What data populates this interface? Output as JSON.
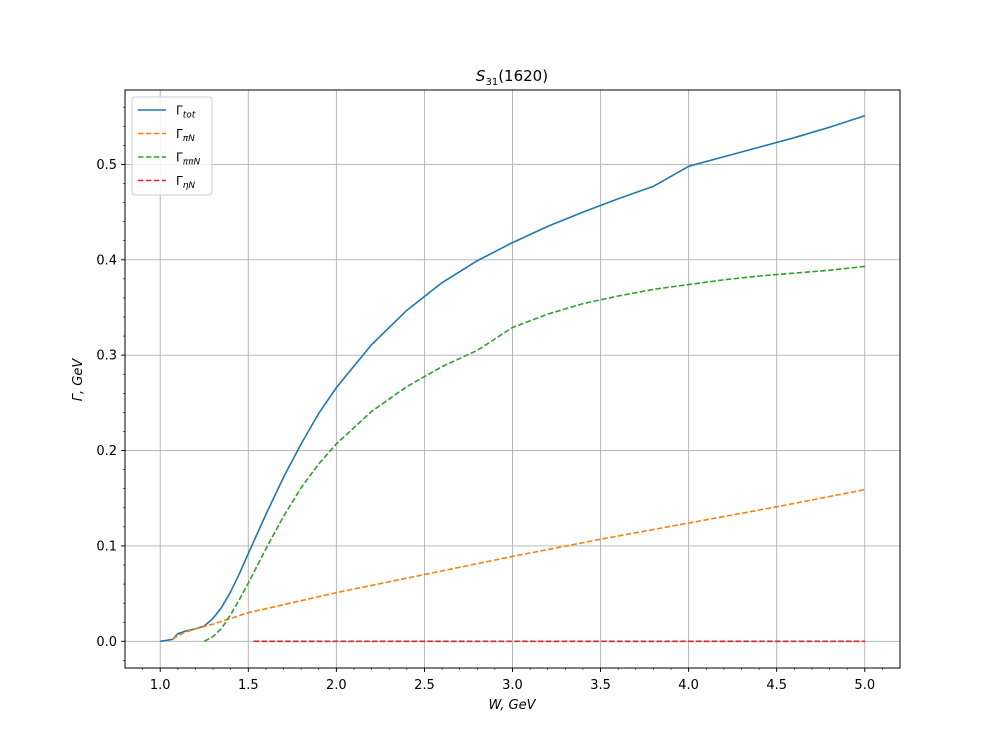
{
  "chart_data": {
    "type": "line",
    "title": {
      "main": "S",
      "sub": "31",
      "rest": "(1620)"
    },
    "xlabel": "W, GeV",
    "ylabel": "Γ,  GeV",
    "xlim": [
      0.8,
      5.2
    ],
    "ylim": [
      -0.028,
      0.578
    ],
    "xticks": [
      1.0,
      1.5,
      2.0,
      2.5,
      3.0,
      3.5,
      4.0,
      4.5,
      5.0
    ],
    "xtick_labels": [
      "1.0",
      "1.5",
      "2.0",
      "2.5",
      "3.0",
      "3.5",
      "4.0",
      "4.5",
      "5.0"
    ],
    "yticks": [
      0.0,
      0.1,
      0.2,
      0.3,
      0.4,
      0.5
    ],
    "ytick_labels": [
      "0.0",
      "0.1",
      "0.2",
      "0.3",
      "0.4",
      "0.5"
    ],
    "grid": true,
    "legend_position": "top-left",
    "series": [
      {
        "name": "Γ_tot",
        "label_main": "Γ",
        "label_sub": "tot",
        "color": "#1f77b4",
        "style": "solid",
        "x": [
          1.0,
          1.07,
          1.1,
          1.15,
          1.2,
          1.25,
          1.3,
          1.35,
          1.4,
          1.45,
          1.5,
          1.6,
          1.7,
          1.8,
          1.9,
          2.0,
          2.2,
          2.4,
          2.6,
          2.8,
          3.0,
          3.2,
          3.4,
          3.6,
          3.8,
          4.0,
          4.2,
          4.4,
          4.6,
          4.8,
          5.0
        ],
        "y": [
          0.0,
          0.002,
          0.008,
          0.011,
          0.013,
          0.016,
          0.024,
          0.036,
          0.052,
          0.071,
          0.092,
          0.133,
          0.172,
          0.207,
          0.239,
          0.266,
          0.311,
          0.347,
          0.376,
          0.399,
          0.418,
          0.435,
          0.45,
          0.464,
          0.477,
          0.498,
          0.508,
          0.518,
          0.528,
          0.539,
          0.551
        ]
      },
      {
        "name": "Γ_πN",
        "label_main": "Γ",
        "label_sub": "πN",
        "color": "#ff7f0e",
        "style": "dashed",
        "x": [
          1.07,
          1.1,
          1.15,
          1.2,
          1.3,
          1.5,
          2.0,
          2.5,
          3.0,
          3.5,
          4.0,
          4.5,
          5.0
        ],
        "y": [
          0.002,
          0.006,
          0.01,
          0.013,
          0.018,
          0.03,
          0.051,
          0.07,
          0.089,
          0.107,
          0.124,
          0.141,
          0.159
        ]
      },
      {
        "name": "Γ_ππN",
        "label_main": "Γ",
        "label_sub": "ππN",
        "color": "#2ca02c",
        "style": "dashed",
        "x": [
          1.25,
          1.3,
          1.35,
          1.4,
          1.45,
          1.5,
          1.6,
          1.7,
          1.8,
          1.9,
          2.0,
          2.2,
          2.4,
          2.6,
          2.8,
          3.0,
          3.2,
          3.4,
          3.6,
          3.8,
          4.0,
          4.2,
          4.4,
          4.6,
          4.8,
          5.0
        ],
        "y": [
          0.0,
          0.005,
          0.014,
          0.028,
          0.044,
          0.061,
          0.097,
          0.131,
          0.161,
          0.186,
          0.207,
          0.241,
          0.267,
          0.288,
          0.305,
          0.329,
          0.343,
          0.354,
          0.362,
          0.369,
          0.374,
          0.379,
          0.383,
          0.386,
          0.389,
          0.393
        ]
      },
      {
        "name": "Γ_ηN",
        "label_main": "Γ",
        "label_sub": "ηN",
        "color": "#d62728",
        "style": "dashed",
        "x": [
          1.53,
          5.0
        ],
        "y": [
          0.0,
          0.0
        ]
      }
    ]
  }
}
